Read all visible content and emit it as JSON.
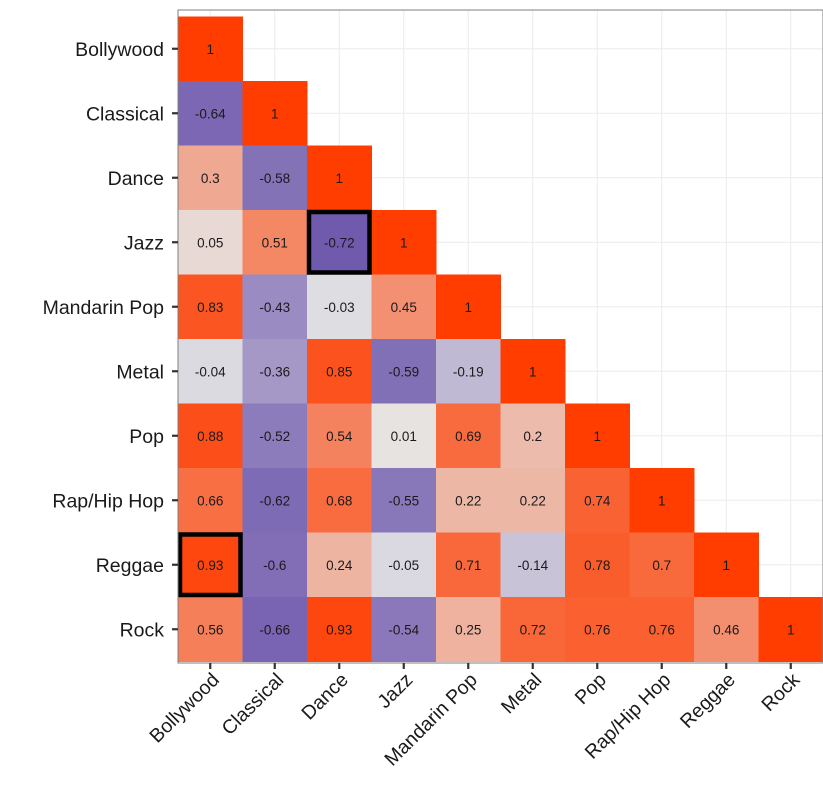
{
  "chart_data": {
    "type": "heatmap",
    "title": "",
    "xlabel": "",
    "ylabel": "",
    "layout": "lower-triangle",
    "categories": [
      "Bollywood",
      "Classical",
      "Dance",
      "Jazz",
      "Mandarin Pop",
      "Metal",
      "Pop",
      "Rap/Hip Hop",
      "Reggae",
      "Rock"
    ],
    "color_scale": {
      "min": -1,
      "max": 1,
      "low_color": "#4a2d9c",
      "mid_color": "#e6e6e6",
      "high_color": "#ff3d00"
    },
    "grid": true,
    "highlighted_cells": [
      {
        "row": "Jazz",
        "col": "Dance"
      },
      {
        "row": "Reggae",
        "col": "Bollywood"
      }
    ],
    "rows": [
      {
        "name": "Bollywood",
        "values": [
          1
        ]
      },
      {
        "name": "Classical",
        "values": [
          -0.64,
          1
        ]
      },
      {
        "name": "Dance",
        "values": [
          0.3,
          -0.58,
          1
        ]
      },
      {
        "name": "Jazz",
        "values": [
          0.05,
          0.51,
          -0.72,
          1
        ]
      },
      {
        "name": "Mandarin Pop",
        "values": [
          0.83,
          -0.43,
          -0.03,
          0.45,
          1
        ]
      },
      {
        "name": "Metal",
        "values": [
          -0.04,
          -0.36,
          0.85,
          -0.59,
          -0.19,
          1
        ]
      },
      {
        "name": "Pop",
        "values": [
          0.88,
          -0.52,
          0.54,
          0.01,
          0.69,
          0.2,
          1
        ]
      },
      {
        "name": "Rap/Hip Hop",
        "values": [
          0.66,
          -0.62,
          0.68,
          -0.55,
          0.22,
          0.22,
          0.74,
          1
        ]
      },
      {
        "name": "Reggae",
        "values": [
          0.93,
          -0.6,
          0.24,
          -0.05,
          0.71,
          -0.14,
          0.78,
          0.7,
          1
        ]
      },
      {
        "name": "Rock",
        "values": [
          0.56,
          -0.66,
          0.93,
          -0.54,
          0.25,
          0.72,
          0.76,
          0.76,
          0.46,
          1
        ]
      }
    ]
  }
}
